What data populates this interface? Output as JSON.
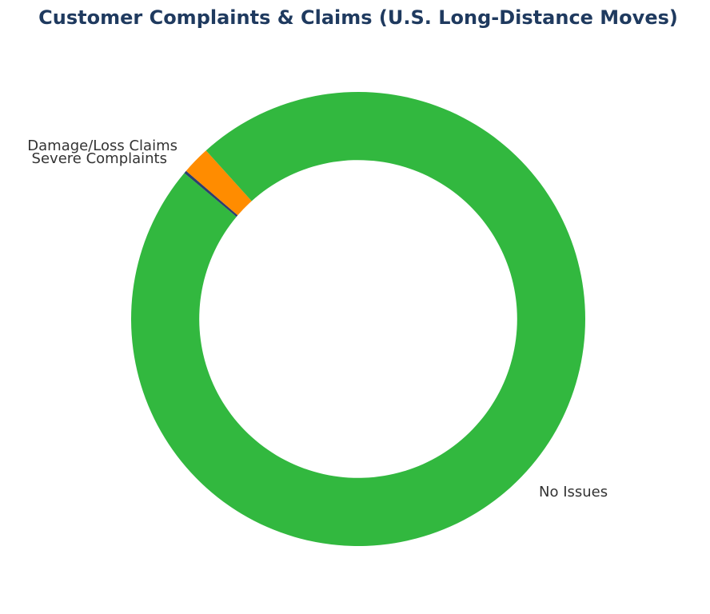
{
  "chart_data": {
    "type": "pie",
    "variant": "donut",
    "title": "Customer Complaints & Claims (U.S. Long-Distance Moves)",
    "categories": [
      "Severe Complaints",
      "Damage/Loss Claims",
      "No Issues"
    ],
    "values": [
      0.2,
      2.0,
      97.8
    ],
    "colors": [
      "#2e3f6e",
      "#ff8c00",
      "#32b83f"
    ],
    "start_angle_deg": 140,
    "counterclockwise": false,
    "ring_width_fraction": 0.3,
    "legend": "none",
    "labels_position": "outside"
  },
  "title": "Customer Complaints & Claims (U.S. Long-Distance Moves)"
}
